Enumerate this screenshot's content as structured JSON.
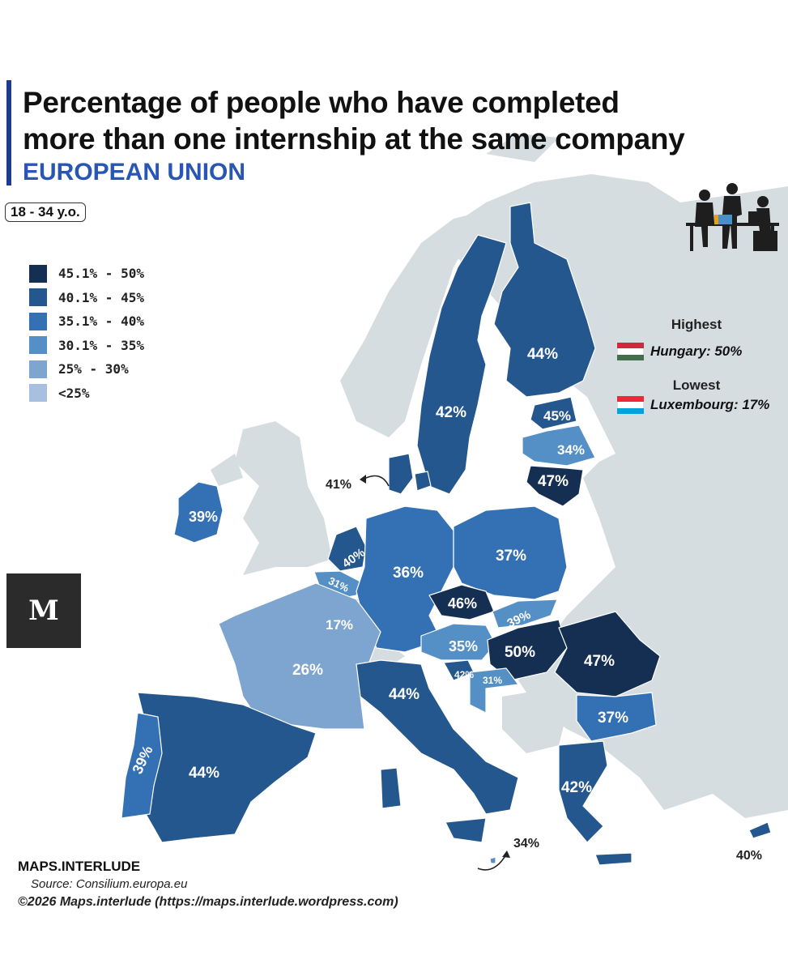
{
  "title_line1": "Percentage of people who have completed",
  "title_line2": "more than one internship at the same company",
  "subtitle": "EUROPEAN UNION",
  "age_group": "18 - 34 y.o.",
  "legend": [
    {
      "label": "45.1% - 50%",
      "color": "#152f52"
    },
    {
      "label": "40.1% - 45%",
      "color": "#24578d"
    },
    {
      "label": "35.1% - 40%",
      "color": "#3370b4"
    },
    {
      "label": "30.1% - 35%",
      "color": "#5490c6"
    },
    {
      "label": "25% - 30%",
      "color": "#7ea5cf"
    },
    {
      "label": "<25%",
      "color": "#a9bfdf"
    }
  ],
  "highest": {
    "heading": "Highest",
    "text": "Hungary: 50%",
    "flag_colors": [
      "#cd2a3e",
      "#ffffff",
      "#436f4d"
    ]
  },
  "lowest": {
    "heading": "Lowest",
    "text": "Luxembourg: 17%",
    "flag_colors": [
      "#ed2939",
      "#ffffff",
      "#00a1de"
    ]
  },
  "countries": [
    {
      "name": "Finland",
      "value": "44%"
    },
    {
      "name": "Sweden",
      "value": "42%"
    },
    {
      "name": "Estonia",
      "value": "45%"
    },
    {
      "name": "Latvia",
      "value": "34%"
    },
    {
      "name": "Lithuania",
      "value": "47%"
    },
    {
      "name": "Denmark",
      "value": "41%"
    },
    {
      "name": "Ireland",
      "value": "39%"
    },
    {
      "name": "Netherlands",
      "value": "40%"
    },
    {
      "name": "Belgium",
      "value": "31%"
    },
    {
      "name": "Luxembourg",
      "value": "17%"
    },
    {
      "name": "Germany",
      "value": "36%"
    },
    {
      "name": "Poland",
      "value": "37%"
    },
    {
      "name": "Czechia",
      "value": "46%"
    },
    {
      "name": "Slovakia",
      "value": "39%"
    },
    {
      "name": "Austria",
      "value": "35%"
    },
    {
      "name": "Hungary",
      "value": "50%"
    },
    {
      "name": "Romania",
      "value": "47%"
    },
    {
      "name": "France",
      "value": "26%"
    },
    {
      "name": "Italy",
      "value": "44%"
    },
    {
      "name": "Slovenia",
      "value": "42%"
    },
    {
      "name": "Croatia",
      "value": "31%"
    },
    {
      "name": "Bulgaria",
      "value": "37%"
    },
    {
      "name": "Spain",
      "value": "44%"
    },
    {
      "name": "Portugal",
      "value": "39%"
    },
    {
      "name": "Greece",
      "value": "42%"
    },
    {
      "name": "Malta",
      "value": "34%"
    },
    {
      "name": "Cyprus",
      "value": "40%"
    }
  ],
  "brand": "MAPS.INTERLUDE",
  "source": "Source: Consilium.europa.eu",
  "copyright": "©2026 Maps.interlude (https://maps.interlude.wordpress.com)",
  "logo_letter": "M"
}
